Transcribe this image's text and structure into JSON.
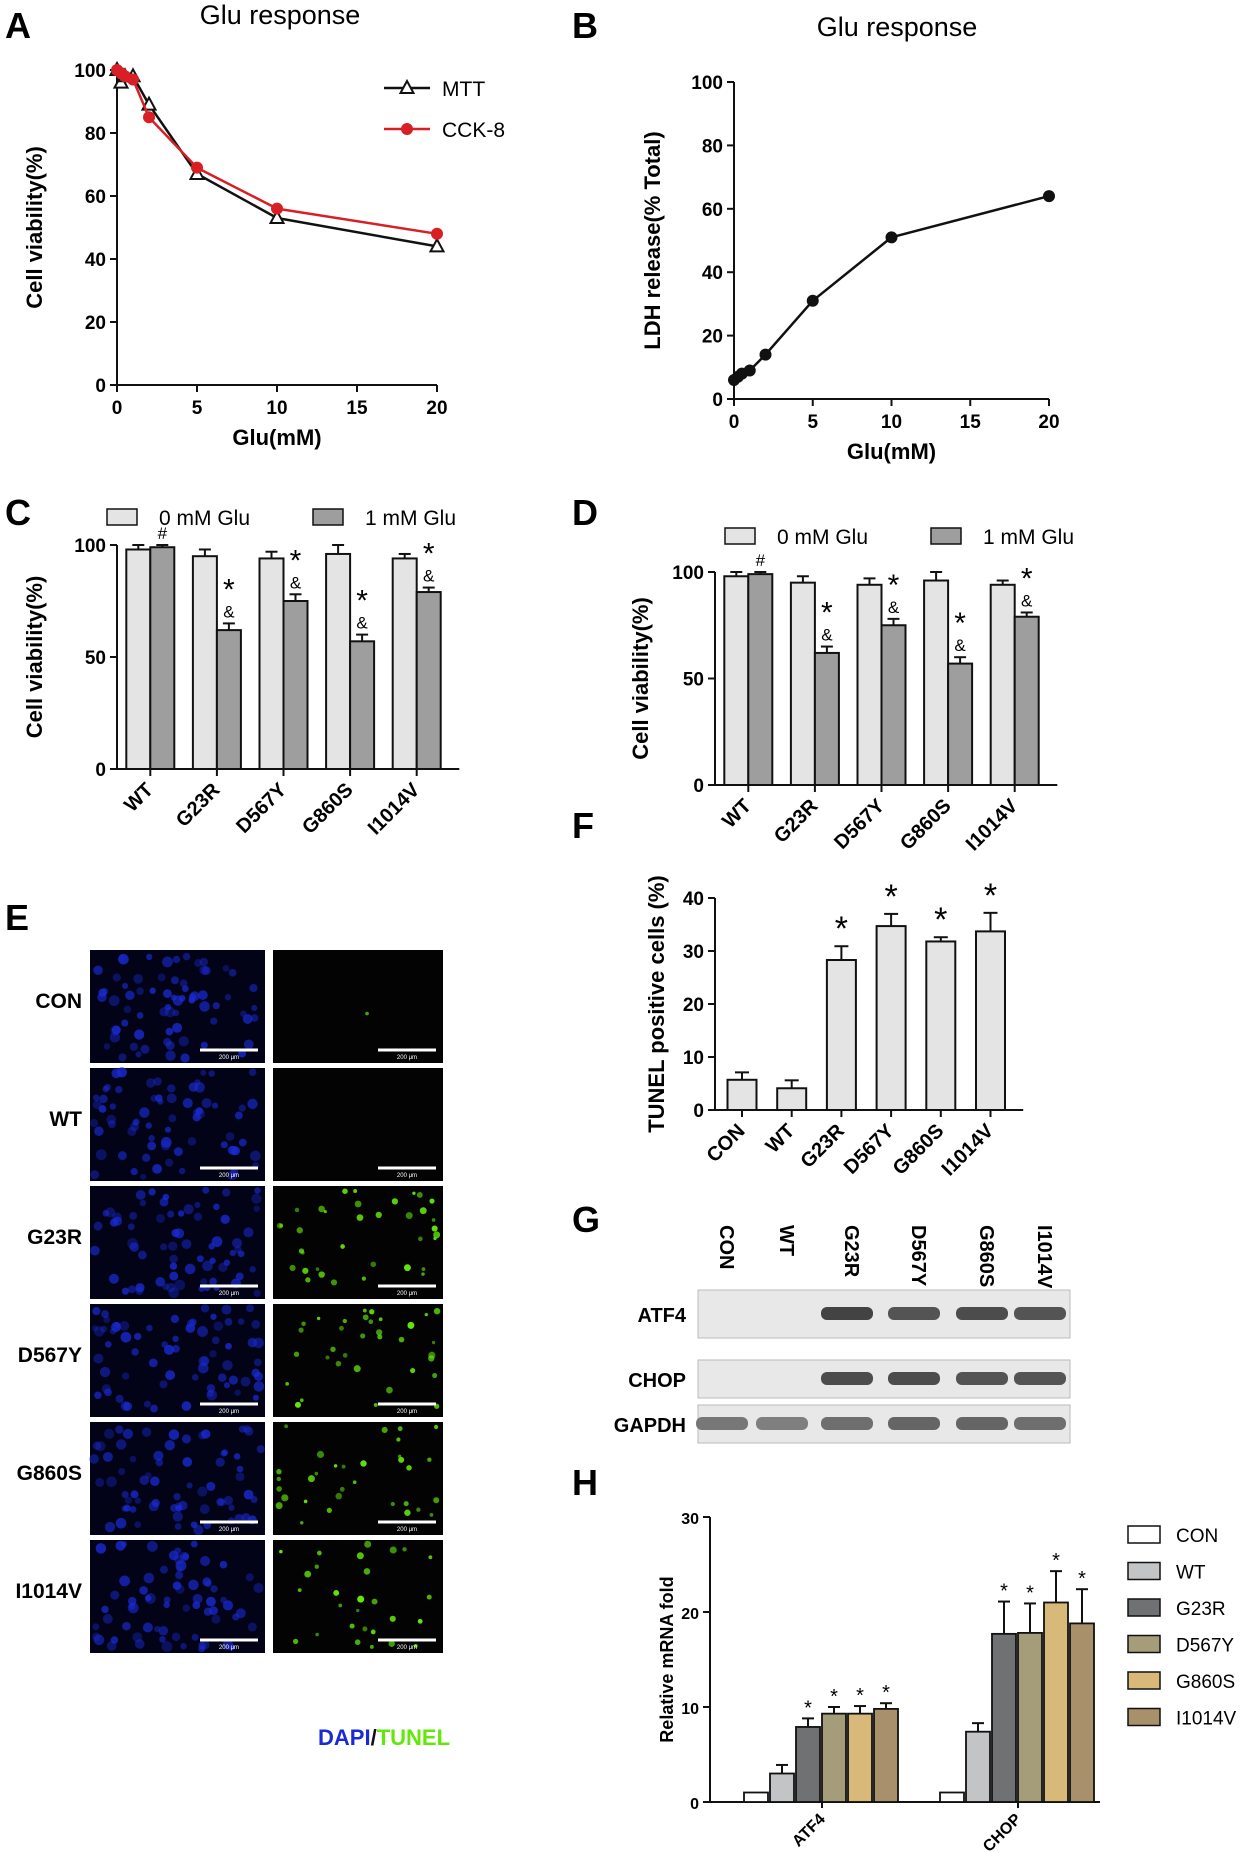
{
  "figure": {
    "panels": {
      "A": "A",
      "B": "B",
      "C": "C",
      "D": "D",
      "E": "E",
      "F": "F",
      "G": "G",
      "H": "H"
    },
    "micrograph": {
      "rows": [
        "CON",
        "WT",
        "G23R",
        "D567Y",
        "G860S",
        "I1014V"
      ],
      "scale_text": "200 μm",
      "caption_dapi": "DAPI",
      "caption_sep": "/",
      "caption_tunel": "TUNEL",
      "dapi_color": "#1a2bd6",
      "tunel_color": "#63e80a",
      "tunel_signal": [
        0.03,
        0.01,
        0.9,
        0.85,
        0.8,
        0.7
      ]
    },
    "western": {
      "lanes": [
        "CON",
        "WT",
        "G23R",
        "D567Y",
        "G860S",
        "I1014V"
      ],
      "rows": [
        "ATF4",
        "CHOP",
        "GAPDH"
      ],
      "intensity": {
        "ATF4": [
          0,
          0,
          0.9,
          0.8,
          0.85,
          0.8
        ],
        "CHOP": [
          0,
          0,
          0.85,
          0.85,
          0.8,
          0.8
        ],
        "GAPDH": [
          0.6,
          0.55,
          0.65,
          0.7,
          0.7,
          0.65
        ]
      }
    }
  },
  "chart_data": [
    {
      "id": "A",
      "type": "line",
      "title": "Glu response",
      "xlabel": "Glu(mM)",
      "ylabel": "Cell viability(%)",
      "xlim": [
        0,
        20
      ],
      "ylim": [
        0,
        100
      ],
      "xticks": [
        "0",
        "5",
        "10",
        "15",
        "20"
      ],
      "yticks": [
        "0",
        "20",
        "40",
        "60",
        "80",
        "100"
      ],
      "legend_position": "top-right",
      "series": [
        {
          "name": "MTT",
          "color": "#111111",
          "marker": "triangle",
          "x": [
            0,
            0.25,
            0.5,
            1,
            2,
            5,
            10,
            20
          ],
          "y": [
            100,
            96,
            98,
            98,
            89,
            67,
            53,
            44
          ]
        },
        {
          "name": "CCK-8",
          "color": "#d91f26",
          "marker": "circle",
          "x": [
            0,
            0.25,
            0.5,
            1,
            2,
            5,
            10,
            20
          ],
          "y": [
            100,
            99,
            98,
            97,
            85,
            69,
            56,
            48
          ]
        }
      ]
    },
    {
      "id": "B",
      "type": "line",
      "title": "Glu response",
      "xlabel": "Glu(mM)",
      "ylabel": "LDH release(% Total)",
      "xlim": [
        0,
        20
      ],
      "ylim": [
        0,
        100
      ],
      "xticks": [
        "0",
        "5",
        "10",
        "15",
        "20"
      ],
      "yticks": [
        "0",
        "20",
        "40",
        "60",
        "80",
        "100"
      ],
      "series": [
        {
          "color": "#111111",
          "marker": "circle",
          "x": [
            0,
            0.25,
            0.5,
            1,
            2,
            5,
            10,
            20
          ],
          "y": [
            6,
            7,
            8,
            9,
            14,
            31,
            51,
            64
          ]
        }
      ]
    },
    {
      "id": "C",
      "type": "bar",
      "ylabel": "Cell viability(%)",
      "ylim": [
        0,
        100
      ],
      "yticks": [
        "0",
        "50",
        "100"
      ],
      "categories": [
        "WT",
        "G23R",
        "D567Y",
        "G860S",
        "I1014V"
      ],
      "legend_position": "top",
      "series": [
        {
          "name": "0 mM Glu",
          "color": "#e4e4e4",
          "values": [
            98,
            95,
            94,
            96,
            94
          ],
          "errors": [
            2,
            3,
            3,
            4,
            2
          ]
        },
        {
          "name": "1 mM Glu",
          "color": "#9e9e9e",
          "values": [
            99,
            62,
            75,
            57,
            79
          ],
          "errors": [
            1,
            3,
            3,
            3,
            2
          ]
        }
      ],
      "annotations": [
        [
          "#"
        ],
        [
          "*",
          "&"
        ],
        [
          "*",
          "&"
        ],
        [
          "*",
          "&"
        ],
        [
          "*",
          "&"
        ]
      ]
    },
    {
      "id": "D",
      "type": "bar",
      "ylabel": "Cell viability(%)",
      "ylim": [
        0,
        100
      ],
      "yticks": [
        "0",
        "50",
        "100"
      ],
      "categories": [
        "WT",
        "G23R",
        "D567Y",
        "G860S",
        "I1014V"
      ],
      "legend_position": "top",
      "series": [
        {
          "name": "0 mM Glu",
          "color": "#e4e4e4",
          "values": [
            98,
            95,
            94,
            96,
            94
          ],
          "errors": [
            2,
            3,
            3,
            4,
            2
          ]
        },
        {
          "name": "1 mM Glu",
          "color": "#9e9e9e",
          "values": [
            99,
            62,
            75,
            57,
            79
          ],
          "errors": [
            1,
            3,
            3,
            3,
            2
          ]
        }
      ],
      "annotations": [
        [
          "#"
        ],
        [
          "*",
          "&"
        ],
        [
          "*",
          "&"
        ],
        [
          "*",
          "&"
        ],
        [
          "*",
          "&"
        ]
      ]
    },
    {
      "id": "F",
      "type": "bar",
      "ylabel": "TUNEL positive cells (%)",
      "ylim": [
        0,
        40
      ],
      "yticks": [
        "0",
        "10",
        "20",
        "30",
        "40"
      ],
      "categories": [
        "CON",
        "WT",
        "G23R",
        "D567Y",
        "G860S",
        "I1014V"
      ],
      "series": [
        {
          "color": "#e4e4e4",
          "values": [
            5.7,
            4.1,
            28.3,
            34.7,
            31.8,
            33.7
          ],
          "errors": [
            1.4,
            1.5,
            2.6,
            2.3,
            0.8,
            3.5
          ]
        }
      ],
      "annotations": [
        "",
        "",
        "*",
        "*",
        "*",
        "*"
      ]
    },
    {
      "id": "H",
      "type": "bar",
      "ylabel": "Relative mRNA fold",
      "ylim": [
        0,
        30
      ],
      "yticks": [
        "0",
        "10",
        "20",
        "30"
      ],
      "categories": [
        "ATF4",
        "CHOP"
      ],
      "legend_position": "right",
      "series": [
        {
          "name": "CON",
          "color": "#ffffff",
          "values": [
            1.0,
            1.0
          ],
          "errors": [
            0,
            0
          ]
        },
        {
          "name": "WT",
          "color": "#c2c4c6",
          "values": [
            3.0,
            7.4
          ],
          "errors": [
            0.9,
            0.9
          ]
        },
        {
          "name": "G23R",
          "color": "#6f7173",
          "values": [
            7.9,
            17.7
          ],
          "errors": [
            0.9,
            3.4
          ]
        },
        {
          "name": "D567Y",
          "color": "#a59d7a",
          "values": [
            9.3,
            17.8
          ],
          "errors": [
            0.7,
            3.1
          ]
        },
        {
          "name": "G860S",
          "color": "#d9b97a",
          "values": [
            9.3,
            21.0
          ],
          "errors": [
            0.8,
            3.3
          ]
        },
        {
          "name": "I1014V",
          "color": "#a8916a",
          "values": [
            9.8,
            18.8
          ],
          "errors": [
            0.6,
            3.6
          ]
        }
      ],
      "annotations": [
        [
          "",
          "",
          "*",
          "*",
          "*",
          "*"
        ],
        [
          "",
          "",
          "*",
          "*",
          "*",
          "*"
        ]
      ]
    }
  ]
}
